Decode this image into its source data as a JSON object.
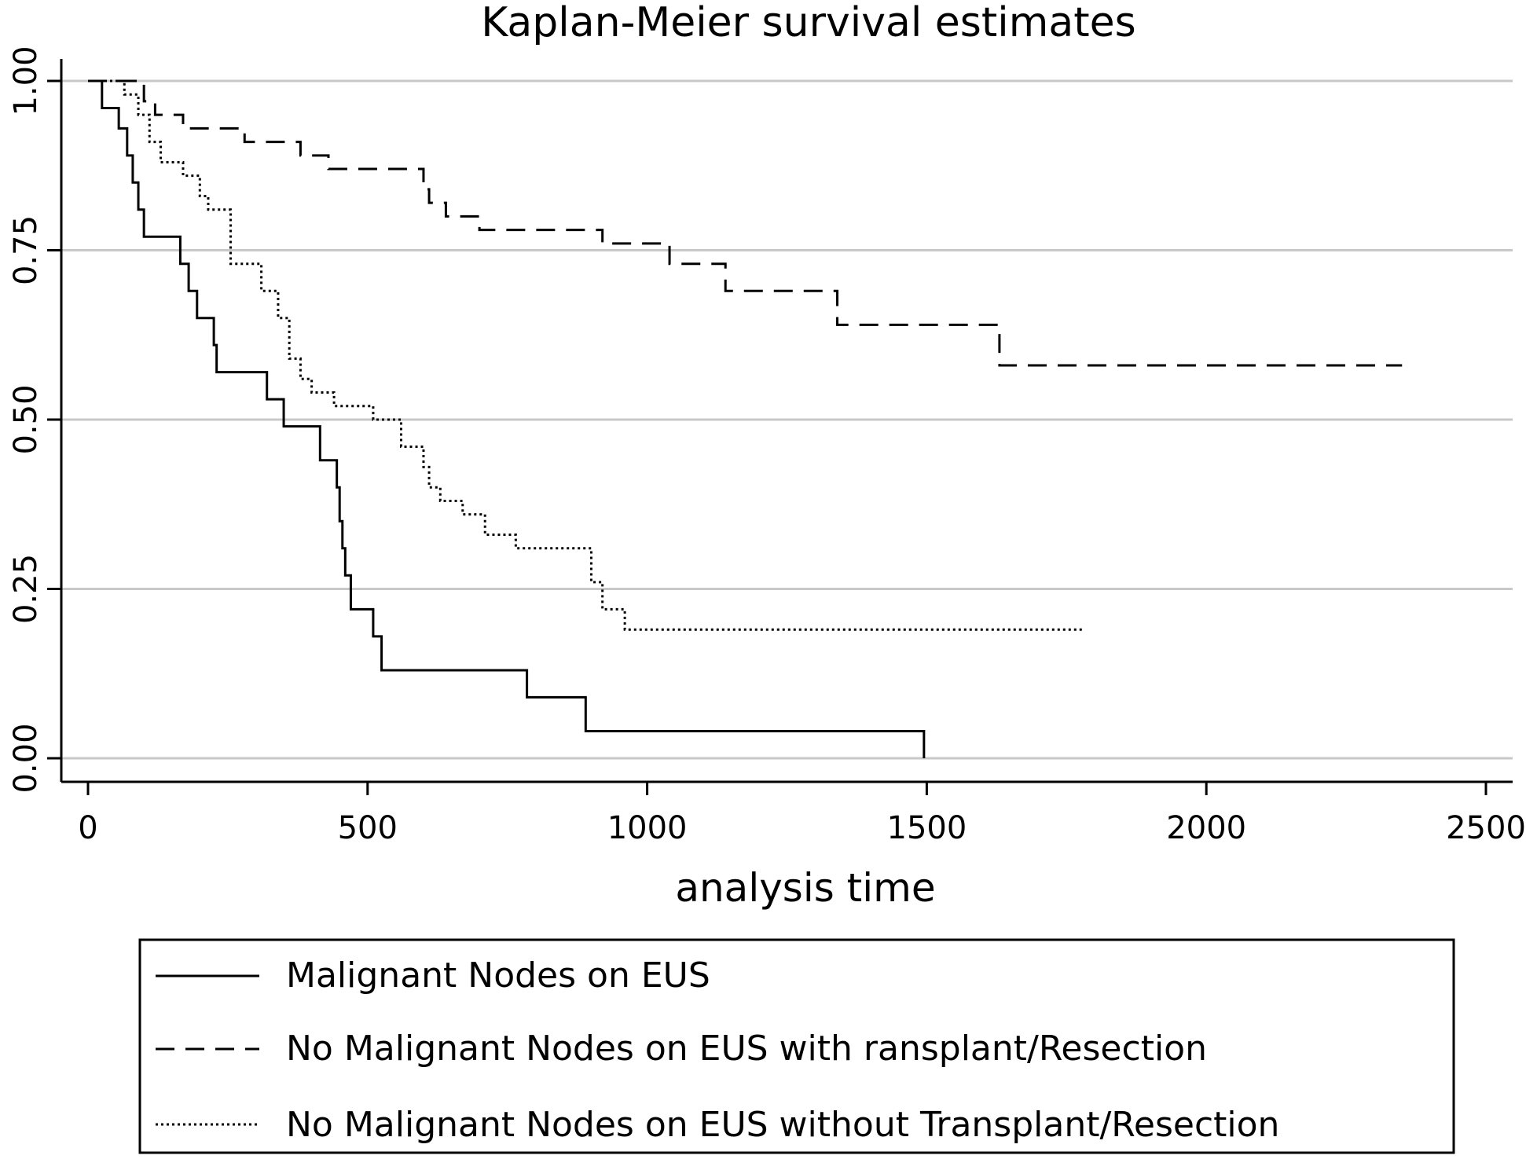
{
  "chart_data": {
    "type": "line",
    "title": "Kaplan-Meier survival estimates",
    "xlabel": "analysis time",
    "ylabel": "",
    "xlim": [
      0,
      2500
    ],
    "ylim": [
      0,
      1
    ],
    "x_ticks": [
      "0",
      "500",
      "1000",
      "1500",
      "2000",
      "2500"
    ],
    "x_tick_values": [
      0,
      500,
      1000,
      1500,
      2000,
      2500
    ],
    "y_ticks": [
      "0.00",
      "0.25",
      "0.50",
      "0.75",
      "1.00"
    ],
    "y_tick_values": [
      0,
      0.25,
      0.5,
      0.75,
      1.0
    ],
    "grid": "horizontal",
    "legend_position": "bottom",
    "series": [
      {
        "name": "Malignant Nodes on EUS",
        "style": "solid",
        "x": [
          0,
          25,
          55,
          70,
          80,
          90,
          100,
          120,
          165,
          180,
          195,
          200,
          225,
          230,
          320,
          350,
          415,
          445,
          450,
          455,
          460,
          470,
          475,
          510,
          525,
          785,
          890,
          1495
        ],
        "y": [
          1.0,
          0.96,
          0.93,
          0.89,
          0.85,
          0.81,
          0.77,
          0.77,
          0.73,
          0.69,
          0.65,
          0.65,
          0.61,
          0.57,
          0.53,
          0.49,
          0.44,
          0.4,
          0.35,
          0.31,
          0.27,
          0.22,
          0.22,
          0.18,
          0.13,
          0.09,
          0.04,
          0.0
        ]
      },
      {
        "name": "No Malignant Nodes on EUS with ransplant/Resection",
        "style": "dashed",
        "x": [
          0,
          100,
          120,
          170,
          280,
          380,
          430,
          600,
          610,
          640,
          700,
          920,
          1040,
          1140,
          1340,
          1630,
          2350
        ],
        "y": [
          1.0,
          0.97,
          0.95,
          0.93,
          0.91,
          0.89,
          0.87,
          0.84,
          0.82,
          0.8,
          0.78,
          0.76,
          0.73,
          0.69,
          0.64,
          0.58,
          0.58
        ]
      },
      {
        "name": "No Malignant Nodes on EUS without Transplant/Resection",
        "style": "dotted",
        "x": [
          0,
          65,
          90,
          110,
          130,
          170,
          200,
          215,
          255,
          310,
          340,
          360,
          380,
          400,
          440,
          510,
          560,
          600,
          610,
          630,
          670,
          710,
          765,
          900,
          920,
          960,
          1780
        ],
        "y": [
          1.0,
          0.98,
          0.95,
          0.91,
          0.88,
          0.86,
          0.83,
          0.81,
          0.73,
          0.69,
          0.65,
          0.59,
          0.56,
          0.54,
          0.52,
          0.5,
          0.46,
          0.43,
          0.4,
          0.38,
          0.36,
          0.33,
          0.31,
          0.26,
          0.22,
          0.19,
          0.19
        ]
      }
    ]
  }
}
